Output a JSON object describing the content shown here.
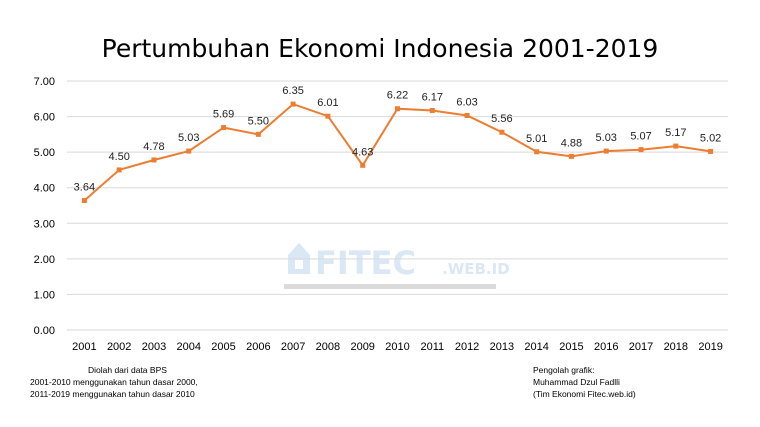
{
  "title": "Pertumbuhan Ekonomi Indonesia 2001-2019",
  "watermark": {
    "brand": "FITEC",
    "suffix": ".WEB.ID"
  },
  "notes": {
    "source": [
      "Diolah dari data BPS",
      "2001-2010 menggunakan tahun dasar 2000,",
      "2011-2019 menggunakan tahun dasar 2010"
    ],
    "author": [
      "Pengolah grafik:",
      "Muhammad  Dzul Fadlli",
      "(Tim Ekonomi  Fitec.web.id)"
    ]
  },
  "colors": {
    "line": "#ED7D31",
    "grid": "#D9D9D9",
    "watermark": "#BDD7EE"
  },
  "chart_data": {
    "type": "line",
    "title": "Pertumbuhan Ekonomi Indonesia 2001-2019",
    "categories": [
      "2001",
      "2002",
      "2003",
      "2004",
      "2005",
      "2006",
      "2007",
      "2008",
      "2009",
      "2010",
      "2011",
      "2012",
      "2013",
      "2014",
      "2015",
      "2016",
      "2017",
      "2018",
      "2019"
    ],
    "values": [
      3.64,
      4.5,
      4.78,
      5.03,
      5.69,
      5.5,
      6.35,
      6.01,
      4.63,
      6.22,
      6.17,
      6.03,
      5.56,
      5.01,
      4.88,
      5.03,
      5.07,
      5.17,
      5.02
    ],
    "data_labels": [
      "3.64",
      "4.50",
      "4.78",
      "5.03",
      "5.69",
      "5.50",
      "6.35",
      "6.01",
      "4.63",
      "6.22",
      "6.17",
      "6.03",
      "5.56",
      "5.01",
      "4.88",
      "5.03",
      "5.07",
      "5.17",
      "5.02"
    ],
    "yticks": [
      "0.00",
      "1.00",
      "2.00",
      "3.00",
      "4.00",
      "5.00",
      "6.00",
      "7.00"
    ],
    "ylim": [
      0,
      7
    ],
    "grid": true,
    "legend": "none"
  }
}
